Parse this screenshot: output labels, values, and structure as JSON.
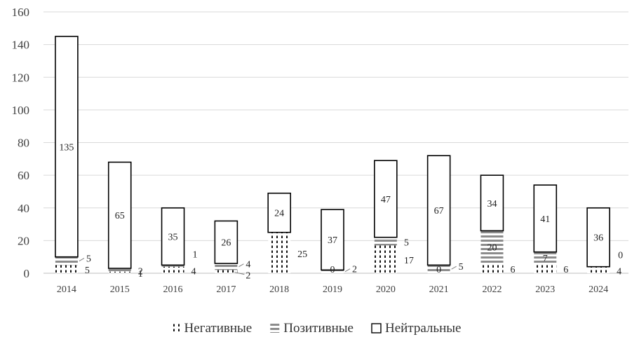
{
  "chart_data": {
    "type": "bar",
    "stacked": true,
    "title": "",
    "xlabel": "",
    "ylabel": "",
    "ylim": [
      0,
      160
    ],
    "yticks": [
      0,
      20,
      40,
      60,
      80,
      100,
      120,
      140,
      160
    ],
    "grid": true,
    "legend_position": "bottom",
    "categories": [
      "2014",
      "2015",
      "2016",
      "2017",
      "2018",
      "2019",
      "2020",
      "2021",
      "2022",
      "2023",
      "2024"
    ],
    "series": [
      {
        "name": "Негативные",
        "pattern": "dotted-vertical",
        "values": [
          5,
          1,
          4,
          2,
          25,
          0,
          17,
          0,
          6,
          6,
          4
        ]
      },
      {
        "name": "Позитивные",
        "pattern": "horizontal-stripes",
        "values": [
          5,
          2,
          1,
          4,
          0,
          2,
          5,
          5,
          20,
          7,
          0
        ]
      },
      {
        "name": "Нейтральные",
        "pattern": "open-box",
        "values": [
          135,
          65,
          35,
          26,
          24,
          37,
          47,
          67,
          34,
          41,
          36
        ]
      }
    ],
    "data_labels": [
      {
        "category": "2014",
        "series": "Нейтральные",
        "text": "135",
        "place": "inside"
      },
      {
        "category": "2014",
        "series": "Позитивные",
        "text": "5",
        "place": "right-leader"
      },
      {
        "category": "2014",
        "series": "Негативные",
        "text": "5",
        "place": "right"
      },
      {
        "category": "2015",
        "series": "Нейтральные",
        "text": "65",
        "place": "inside"
      },
      {
        "category": "2015",
        "series": "Позитивные",
        "text": "2",
        "place": "right"
      },
      {
        "category": "2015",
        "series": "Негативные",
        "text": "1",
        "place": "right"
      },
      {
        "category": "2016",
        "series": "Нейтральные",
        "text": "35",
        "place": "inside"
      },
      {
        "category": "2016",
        "series": "Позитивные",
        "text": "1",
        "place": "right-high"
      },
      {
        "category": "2016",
        "series": "Негативные",
        "text": "4",
        "place": "right"
      },
      {
        "category": "2017",
        "series": "Нейтральные",
        "text": "26",
        "place": "inside"
      },
      {
        "category": "2017",
        "series": "Позитивные",
        "text": "4",
        "place": "right-leader"
      },
      {
        "category": "2017",
        "series": "Негативные",
        "text": "2",
        "place": "right-leader-low"
      },
      {
        "category": "2018",
        "series": "Нейтральные",
        "text": "24",
        "place": "inside"
      },
      {
        "category": "2018",
        "series": "Негативные",
        "text": "25",
        "place": "right"
      },
      {
        "category": "2019",
        "series": "Нейтральные",
        "text": "37",
        "place": "inside"
      },
      {
        "category": "2019",
        "series": "Негативные",
        "text": "0",
        "place": "inside-bottom"
      },
      {
        "category": "2019",
        "series": "Позитивные",
        "text": "2",
        "place": "right-leader"
      },
      {
        "category": "2020",
        "series": "Нейтральные",
        "text": "47",
        "place": "inside"
      },
      {
        "category": "2020",
        "series": "Позитивные",
        "text": "5",
        "place": "right"
      },
      {
        "category": "2020",
        "series": "Негативные",
        "text": "17",
        "place": "right"
      },
      {
        "category": "2021",
        "series": "Нейтральные",
        "text": "67",
        "place": "inside"
      },
      {
        "category": "2021",
        "series": "Негативные",
        "text": "0",
        "place": "inside-bottom"
      },
      {
        "category": "2021",
        "series": "Позитивные",
        "text": "5",
        "place": "right-leader"
      },
      {
        "category": "2022",
        "series": "Нейтральные",
        "text": "34",
        "place": "inside"
      },
      {
        "category": "2022",
        "series": "Позитивные",
        "text": "20",
        "place": "inside"
      },
      {
        "category": "2022",
        "series": "Негативные",
        "text": "6",
        "place": "right"
      },
      {
        "category": "2023",
        "series": "Нейтральные",
        "text": "41",
        "place": "inside"
      },
      {
        "category": "2023",
        "series": "Позитивные",
        "text": "7",
        "place": "inside"
      },
      {
        "category": "2023",
        "series": "Негативные",
        "text": "6",
        "place": "right"
      },
      {
        "category": "2024",
        "series": "Нейтральные",
        "text": "36",
        "place": "inside"
      },
      {
        "category": "2024",
        "series": "Позитивные",
        "text": "0",
        "place": "right-high"
      },
      {
        "category": "2024",
        "series": "Негативные",
        "text": "4",
        "place": "right"
      }
    ]
  }
}
